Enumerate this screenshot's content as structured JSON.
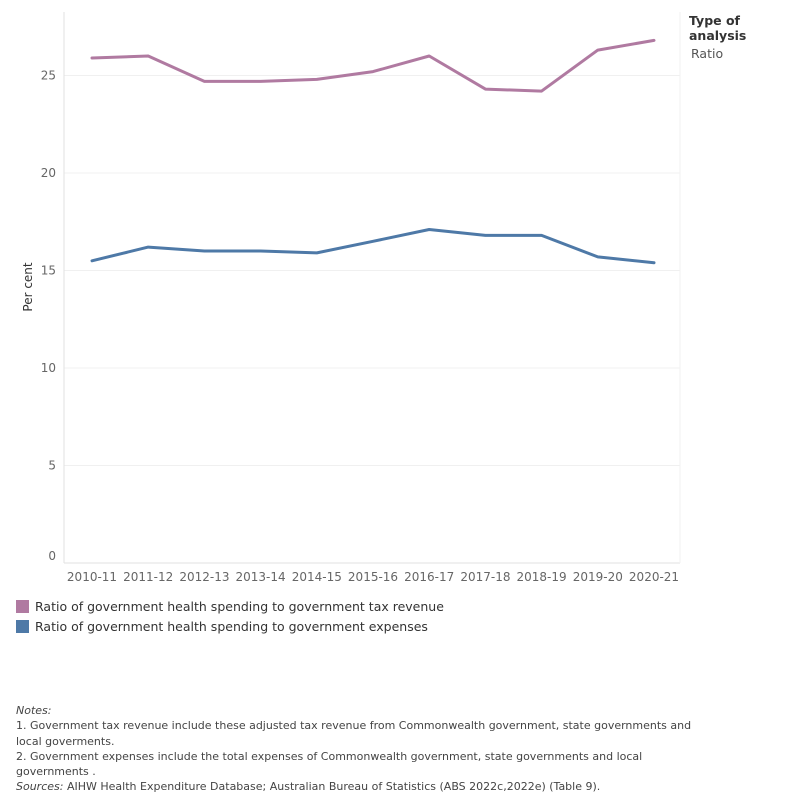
{
  "filter": {
    "title": "Type of analysis",
    "value": "Ratio"
  },
  "chart_data": {
    "type": "line",
    "x": [
      "2010-11",
      "2011-12",
      "2012-13",
      "2013-14",
      "2014-15",
      "2015-16",
      "2016-17",
      "2017-18",
      "2018-19",
      "2019-20",
      "2020-21"
    ],
    "series": [
      {
        "name": "Ratio of government health spending to government tax revenue",
        "color": "#b07aa1",
        "values": [
          25.9,
          26.0,
          24.7,
          24.7,
          24.8,
          25.2,
          26.0,
          24.3,
          24.2,
          26.3,
          26.8
        ]
      },
      {
        "name": "Ratio of government health spending to government expenses",
        "color": "#4e79a7",
        "values": [
          15.5,
          16.2,
          16.0,
          16.0,
          15.9,
          16.5,
          17.1,
          16.8,
          16.8,
          15.7,
          15.4
        ]
      }
    ],
    "ylabel": "Per cent",
    "yticks": [
      0,
      5,
      10,
      15,
      20,
      25
    ],
    "ylim": [
      0,
      28
    ],
    "grid": true,
    "legend": "bottom-left"
  },
  "notes": {
    "heading": "Notes:",
    "line1": "1.  Government tax revenue include these adjusted tax revenue from Commonwealth government, state governments and local goverments.",
    "line2": "2.  Government expenses include the total expenses of Commonwealth government, state governments and local governments .",
    "sources_label": "Sources:",
    "sources_text": " AIHW Health Expenditure Database; Australian Bureau of Statistics (ABS 2022c,2022e) (Table 9)."
  }
}
